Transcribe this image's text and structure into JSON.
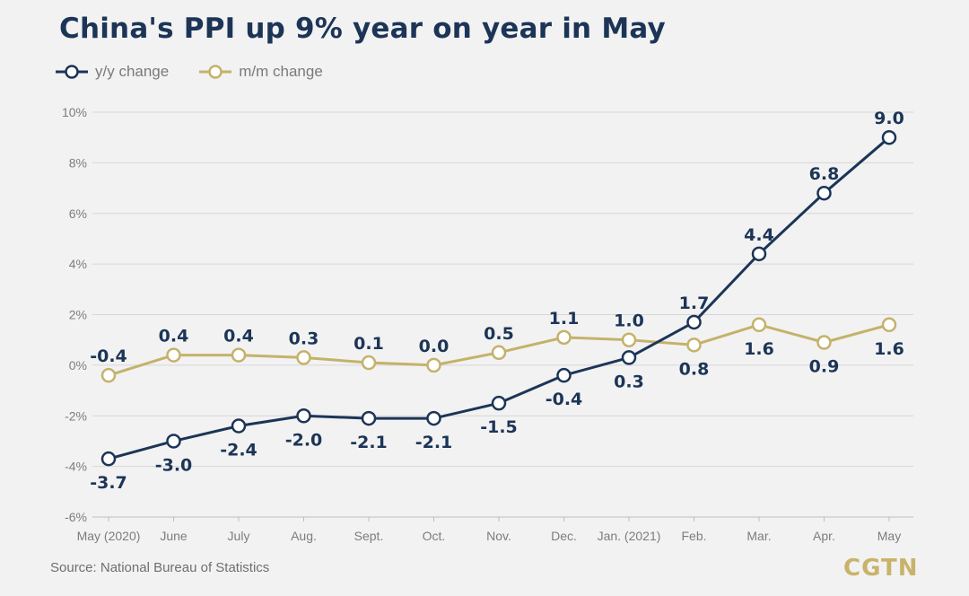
{
  "header": {
    "title": "China's PPI up 9% year on year in May"
  },
  "legend": [
    {
      "label": "y/y change",
      "color": "#1c3557"
    },
    {
      "label": "m/m change",
      "color": "#c4b26b"
    }
  ],
  "footer": {
    "source": "Source: National Bureau of Statistics",
    "logo": "CGTN"
  },
  "chart_data": {
    "type": "line",
    "categories": [
      "May (2020)",
      "June",
      "July",
      "Aug.",
      "Sept.",
      "Oct.",
      "Nov.",
      "Dec.",
      "Jan. (2021)",
      "Feb.",
      "Mar.",
      "Apr.",
      "May"
    ],
    "series": [
      {
        "name": "y/y change",
        "color": "#1c3557",
        "values": [
          -3.7,
          -3.0,
          -2.4,
          -2.0,
          -2.1,
          -2.1,
          -1.5,
          -0.4,
          0.3,
          1.7,
          4.4,
          6.8,
          9.0
        ],
        "labels": [
          "-3.7",
          "-3.0",
          "-2.4",
          "-2.0",
          "-2.1",
          "-2.1",
          "-1.5",
          "-0.4",
          "0.3",
          "1.7",
          "4.4",
          "6.8",
          "9.0"
        ]
      },
      {
        "name": "m/m change",
        "color": "#c4b26b",
        "values": [
          -0.4,
          0.4,
          0.4,
          0.3,
          0.1,
          0.0,
          0.5,
          1.1,
          1.0,
          0.8,
          1.6,
          0.9,
          1.6
        ],
        "labels": [
          "-0.4",
          "0.4",
          "0.4",
          "0.3",
          "0.1",
          "0.0",
          "0.5",
          "1.1",
          "1.0",
          "0.8",
          "1.6",
          "0.9",
          "1.6"
        ]
      }
    ],
    "yticks": [
      {
        "value": 10,
        "label": "10%"
      },
      {
        "value": 8,
        "label": "8%"
      },
      {
        "value": 6,
        "label": "6%"
      },
      {
        "value": 4,
        "label": "4%"
      },
      {
        "value": 2,
        "label": "2%"
      },
      {
        "value": 0,
        "label": "0%"
      },
      {
        "value": -2,
        "label": "-2%"
      },
      {
        "value": -4,
        "label": "-4%"
      },
      {
        "value": -6,
        "label": "-6%"
      }
    ],
    "ylim": [
      -6,
      10
    ],
    "grid": true,
    "legend_position": "top-left"
  }
}
